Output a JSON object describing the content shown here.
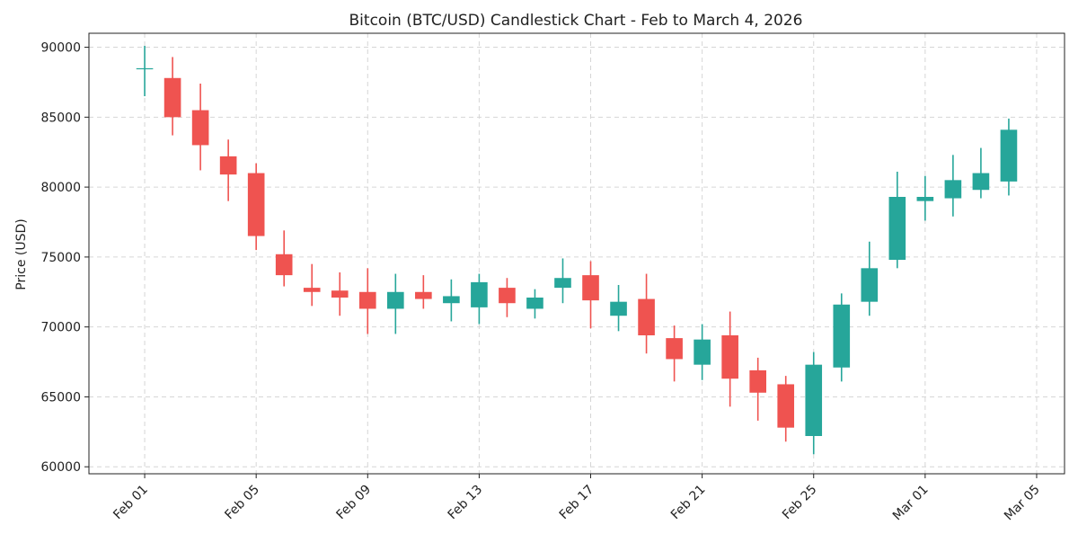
{
  "chart_data": {
    "type": "candlestick",
    "title": "Bitcoin (BTC/USD) Candlestick Chart - Feb to March 4, 2026",
    "xlabel": "",
    "ylabel": "Price (USD)",
    "ylim": [
      59500,
      91000
    ],
    "xlim": [
      "2026-01-30",
      "2026-03-06"
    ],
    "yticks": [
      60000,
      65000,
      70000,
      75000,
      80000,
      85000,
      90000
    ],
    "xticks": [
      {
        "date": "2026-02-01",
        "label": "Feb 01"
      },
      {
        "date": "2026-02-05",
        "label": "Feb 05"
      },
      {
        "date": "2026-02-09",
        "label": "Feb 09"
      },
      {
        "date": "2026-02-13",
        "label": "Feb 13"
      },
      {
        "date": "2026-02-17",
        "label": "Feb 17"
      },
      {
        "date": "2026-02-21",
        "label": "Feb 21"
      },
      {
        "date": "2026-02-25",
        "label": "Feb 25"
      },
      {
        "date": "2026-03-01",
        "label": "Mar 01"
      },
      {
        "date": "2026-03-05",
        "label": "Mar 05"
      }
    ],
    "grid": true,
    "up_color": "#26a69a",
    "down_color": "#ef5350",
    "candles": [
      {
        "date": "2026-02-01",
        "open": 88500,
        "high": 90100,
        "low": 86500,
        "close": 88500
      },
      {
        "date": "2026-02-02",
        "open": 87800,
        "high": 89300,
        "low": 83700,
        "close": 85000
      },
      {
        "date": "2026-02-03",
        "open": 85500,
        "high": 87400,
        "low": 81200,
        "close": 83000
      },
      {
        "date": "2026-02-04",
        "open": 82200,
        "high": 83400,
        "low": 79000,
        "close": 80900
      },
      {
        "date": "2026-02-05",
        "open": 81000,
        "high": 81700,
        "low": 75500,
        "close": 76500
      },
      {
        "date": "2026-02-06",
        "open": 75200,
        "high": 76900,
        "low": 72900,
        "close": 73700
      },
      {
        "date": "2026-02-07",
        "open": 72800,
        "high": 74500,
        "low": 71500,
        "close": 72500
      },
      {
        "date": "2026-02-08",
        "open": 72600,
        "high": 73900,
        "low": 70800,
        "close": 72100
      },
      {
        "date": "2026-02-09",
        "open": 72500,
        "high": 74200,
        "low": 69500,
        "close": 71300
      },
      {
        "date": "2026-02-10",
        "open": 71300,
        "high": 73800,
        "low": 69500,
        "close": 72500
      },
      {
        "date": "2026-02-11",
        "open": 72500,
        "high": 73700,
        "low": 71300,
        "close": 72000
      },
      {
        "date": "2026-02-12",
        "open": 71700,
        "high": 73400,
        "low": 70400,
        "close": 72200
      },
      {
        "date": "2026-02-13",
        "open": 71400,
        "high": 73800,
        "low": 70200,
        "close": 73200
      },
      {
        "date": "2026-02-14",
        "open": 72800,
        "high": 73500,
        "low": 70700,
        "close": 71700
      },
      {
        "date": "2026-02-15",
        "open": 71300,
        "high": 72700,
        "low": 70600,
        "close": 72100
      },
      {
        "date": "2026-02-16",
        "open": 72800,
        "high": 74900,
        "low": 71700,
        "close": 73500
      },
      {
        "date": "2026-02-17",
        "open": 73700,
        "high": 74700,
        "low": 69900,
        "close": 71900
      },
      {
        "date": "2026-02-18",
        "open": 70800,
        "high": 73000,
        "low": 69700,
        "close": 71800
      },
      {
        "date": "2026-02-19",
        "open": 72000,
        "high": 73800,
        "low": 68100,
        "close": 69400
      },
      {
        "date": "2026-02-20",
        "open": 69200,
        "high": 70100,
        "low": 66100,
        "close": 67700
      },
      {
        "date": "2026-02-21",
        "open": 67300,
        "high": 70200,
        "low": 66200,
        "close": 69100
      },
      {
        "date": "2026-02-22",
        "open": 69400,
        "high": 71100,
        "low": 64300,
        "close": 66300
      },
      {
        "date": "2026-02-23",
        "open": 66900,
        "high": 67800,
        "low": 63300,
        "close": 65300
      },
      {
        "date": "2026-02-24",
        "open": 65900,
        "high": 66500,
        "low": 61800,
        "close": 62800
      },
      {
        "date": "2026-02-25",
        "open": 62200,
        "high": 68200,
        "low": 60900,
        "close": 67300
      },
      {
        "date": "2026-02-26",
        "open": 67100,
        "high": 72400,
        "low": 66100,
        "close": 71600
      },
      {
        "date": "2026-02-27",
        "open": 71800,
        "high": 76100,
        "low": 70800,
        "close": 74200
      },
      {
        "date": "2026-02-28",
        "open": 74800,
        "high": 81100,
        "low": 74200,
        "close": 79300
      },
      {
        "date": "2026-03-01",
        "open": 79000,
        "high": 80800,
        "low": 77600,
        "close": 79300
      },
      {
        "date": "2026-03-02",
        "open": 79200,
        "high": 82300,
        "low": 77900,
        "close": 80500
      },
      {
        "date": "2026-03-03",
        "open": 79800,
        "high": 82800,
        "low": 79200,
        "close": 81000
      },
      {
        "date": "2026-03-04",
        "open": 80400,
        "high": 84900,
        "low": 79400,
        "close": 84100
      }
    ]
  }
}
